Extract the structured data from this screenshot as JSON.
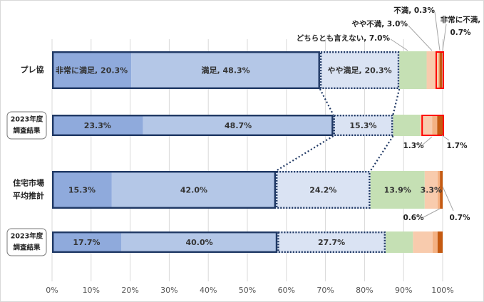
{
  "chart_data": {
    "type": "bar",
    "orientation": "horizontal",
    "stacked": true,
    "xlim": [
      0,
      100
    ],
    "x_ticks": [
      "0%",
      "10%",
      "20%",
      "30%",
      "40%",
      "50%",
      "60%",
      "70%",
      "80%",
      "90%",
      "100%"
    ],
    "grid": true,
    "segment_colors": [
      "#8faadc",
      "#b4c7e7",
      "#dae3f3",
      "#c5e0b4",
      "#f8cbad",
      "#f4b183",
      "#c55a11"
    ],
    "highlight_color": "#1f3864",
    "callout_color": "#ff0000",
    "categories": [
      {
        "name": "プレ協",
        "boxed": false
      },
      {
        "name": "2023年度\n調査結果",
        "boxed": true
      },
      {
        "name": "住宅市場\n平均推計",
        "boxed": false
      },
      {
        "name": "2023年度\n調査結果",
        "boxed": true
      }
    ],
    "bars": [
      {
        "values": [
          20.3,
          48.3,
          20.3,
          7.0,
          3.0,
          0.3,
          0.7
        ],
        "labels": [
          "非常に満足, 20.3%",
          "満足, 48.3%",
          "やや満足, 20.3%",
          "",
          "",
          "",
          ""
        ]
      },
      {
        "values": [
          23.3,
          48.7,
          15.3,
          7.0,
          3.0,
          1.3,
          1.7
        ],
        "labels": [
          "23.3%",
          "48.7%",
          "15.3%",
          "",
          "",
          "",
          ""
        ]
      },
      {
        "values": [
          15.3,
          42.0,
          24.2,
          13.9,
          3.3,
          0.6,
          0.7
        ],
        "labels": [
          "15.3%",
          "42.0%",
          "24.2%",
          "13.9%",
          "3.3%",
          "",
          ""
        ]
      },
      {
        "values": [
          17.7,
          40.0,
          27.7,
          7.0,
          5.0,
          1.3,
          1.3
        ],
        "labels": [
          "17.7%",
          "40.0%",
          "27.7%",
          "",
          "",
          "",
          ""
        ]
      }
    ],
    "annotations": {
      "neither": "どちらとも言えない, 7.0%",
      "somewhat_dissatisfied": "やや不満, 3.0%",
      "dissatisfied": "不満, 0.3%",
      "very_dissatisfied_line1": "非常に不満,",
      "very_dissatisfied_line2": "0.7%",
      "bar2_dissatisfied": "1.3%",
      "bar2_very_dissatisfied": "1.7%",
      "bar3_dissatisfied": "0.6%",
      "bar3_very_dissatisfied": "0.7%"
    }
  }
}
